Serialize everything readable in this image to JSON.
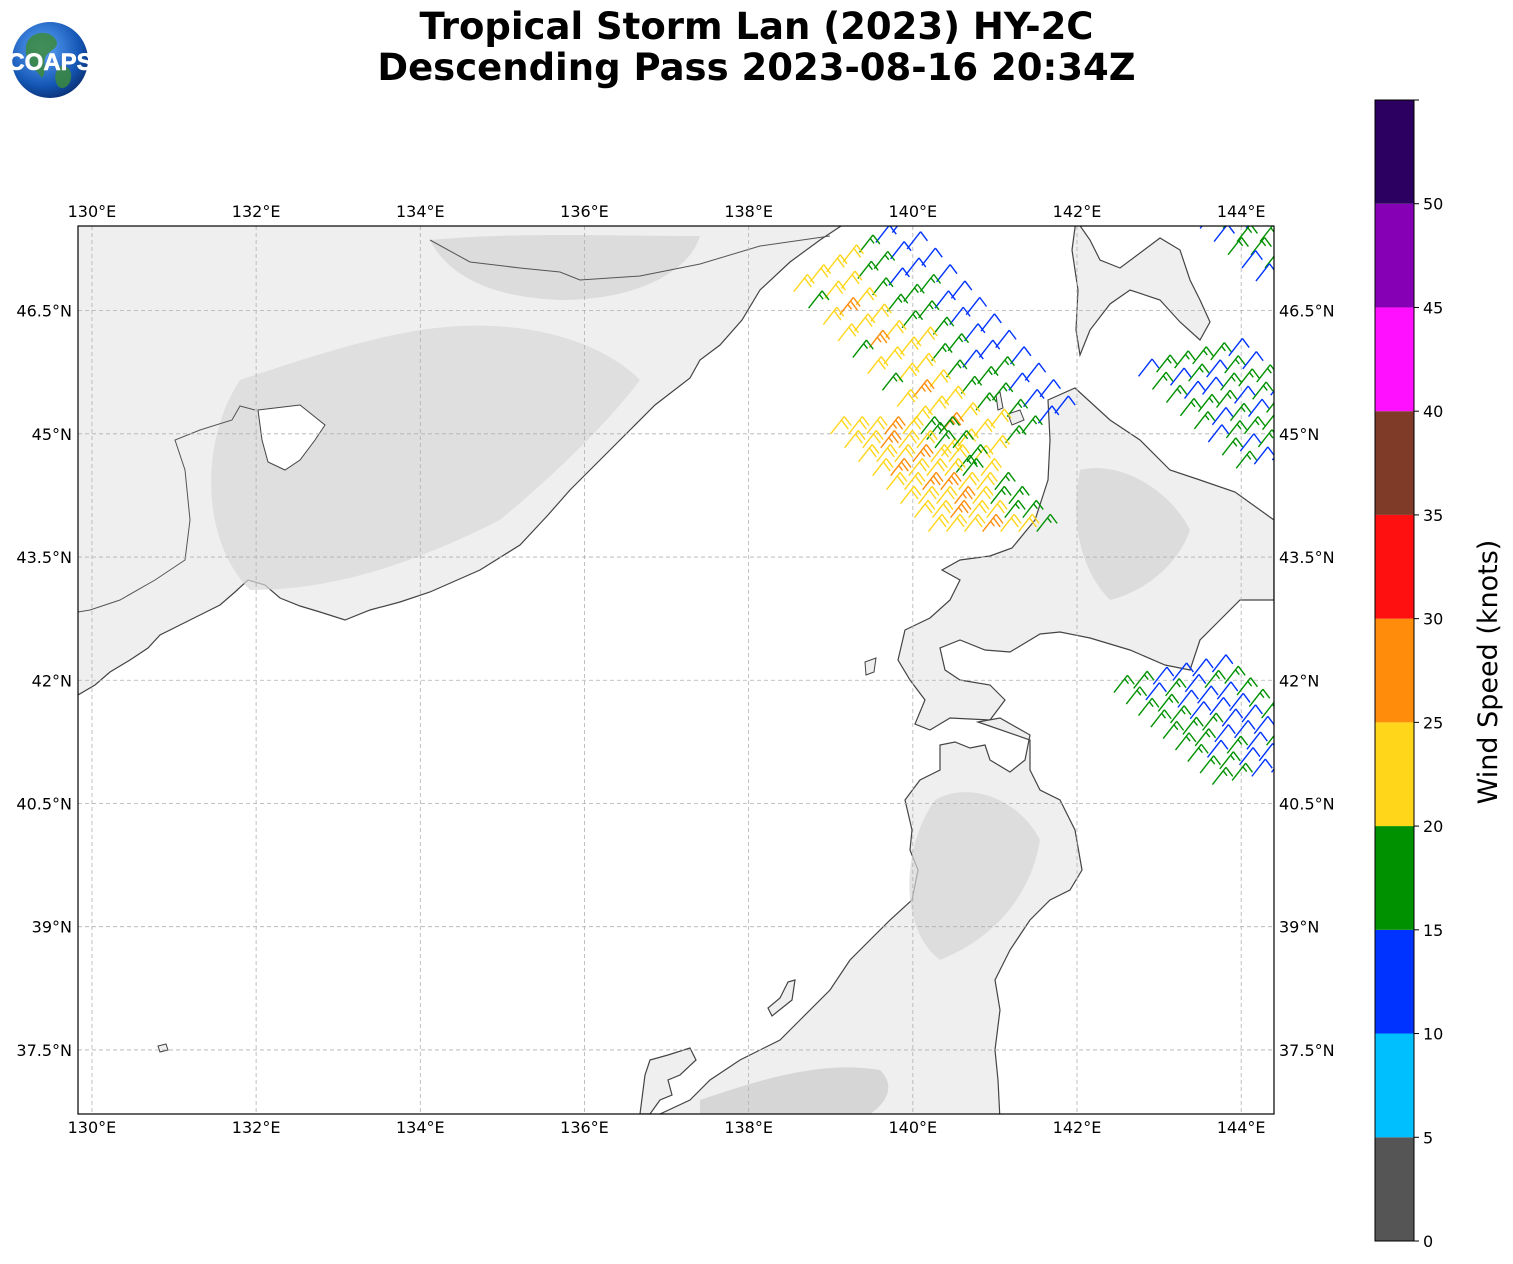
{
  "header": {
    "title_line1": "Tropical Storm Lan (2023) HY-2C",
    "title_line2": "Descending Pass 2023-08-16 20:34Z"
  },
  "logo": {
    "text": "COAPS",
    "icon": "globe-icon"
  },
  "map": {
    "lon_range": [
      129.83,
      144.4
    ],
    "lat_range": [
      36.72,
      47.53
    ],
    "lon_ticks": [
      {
        "value": 130,
        "label": "130°E"
      },
      {
        "value": 132,
        "label": "132°E"
      },
      {
        "value": 134,
        "label": "134°E"
      },
      {
        "value": 136,
        "label": "136°E"
      },
      {
        "value": 138,
        "label": "138°E"
      },
      {
        "value": 140,
        "label": "140°E"
      },
      {
        "value": 142,
        "label": "142°E"
      },
      {
        "value": 144,
        "label": "144°E"
      }
    ],
    "lat_ticks": [
      {
        "value": 46.5,
        "label": "46.5°N"
      },
      {
        "value": 45.0,
        "label": "45°N"
      },
      {
        "value": 43.5,
        "label": "43.5°N"
      },
      {
        "value": 42.0,
        "label": "42°N"
      },
      {
        "value": 40.5,
        "label": "40.5°N"
      },
      {
        "value": 39.0,
        "label": "39°N"
      },
      {
        "value": 37.5,
        "label": "37.5°N"
      }
    ],
    "gridlines": true,
    "land_color": "#f2f2f2",
    "coast_color": "#444444",
    "grid_color": "#b0b0b0"
  },
  "colorbar": {
    "label": "Wind Speed (knots)",
    "min": 0,
    "max": 55,
    "bins": [
      {
        "from": 0,
        "to": 5,
        "color": "#555555"
      },
      {
        "from": 5,
        "to": 10,
        "color": "#00bfff"
      },
      {
        "from": 10,
        "to": 15,
        "color": "#0033ff"
      },
      {
        "from": 15,
        "to": 20,
        "color": "#009100"
      },
      {
        "from": 20,
        "to": 25,
        "color": "#ffd61a"
      },
      {
        "from": 25,
        "to": 30,
        "color": "#ff8c0a"
      },
      {
        "from": 30,
        "to": 35,
        "color": "#ff1010"
      },
      {
        "from": 35,
        "to": 40,
        "color": "#803a28"
      },
      {
        "from": 40,
        "to": 45,
        "color": "#ff10ff"
      },
      {
        "from": 45,
        "to": 50,
        "color": "#8600b5"
      },
      {
        "from": 50,
        "to": 55,
        "color": "#2c0060"
      }
    ],
    "ticks": [
      "0",
      "5",
      "10",
      "15",
      "20",
      "25",
      "30",
      "35",
      "40",
      "45",
      "50"
    ]
  },
  "wind_swaths": [
    {
      "name": "north-west-swath",
      "lon_start": 139.75,
      "lat_start": 47.45,
      "lon_step_row": 0.18,
      "lat_step_row": -0.2,
      "lon_step_col": -0.2,
      "lat_step_col": -0.12,
      "rows": 12,
      "cols": 7,
      "speed_profile": [
        12,
        13,
        16,
        18,
        22,
        24,
        20
      ]
    },
    {
      "name": "central-swath",
      "lon_start": 139.0,
      "lat_start": 45.0,
      "lon_step_row": 0.17,
      "lat_step_row": -0.17,
      "lon_step_col": 0.22,
      "lat_step_col": 0.0,
      "rows": 8,
      "cols": 7,
      "speed_profile": [
        22,
        23,
        24,
        25,
        22,
        19,
        18
      ]
    },
    {
      "name": "east-upper-swath",
      "lon_start": 142.75,
      "lat_start": 45.7,
      "lon_step_row": 0.17,
      "lat_step_row": -0.16,
      "lon_step_col": 0.22,
      "lat_step_col": 0.05,
      "rows": 8,
      "cols": 6,
      "speed_profile": [
        16,
        14,
        16,
        14,
        17,
        14
      ]
    },
    {
      "name": "east-lower-swath",
      "lon_start": 142.45,
      "lat_start": 41.85,
      "lon_step_row": 0.15,
      "lat_step_row": -0.14,
      "lon_step_col": 0.24,
      "lat_step_col": 0.05,
      "rows": 9,
      "cols": 6,
      "speed_profile": [
        17,
        16,
        14,
        12,
        13,
        16
      ]
    },
    {
      "name": "north-east-swath",
      "lon_start": 143.5,
      "lat_start": 47.5,
      "lon_step_row": 0.17,
      "lat_step_row": -0.16,
      "lon_step_col": 0.28,
      "lat_step_col": 0.0,
      "rows": 5,
      "cols": 3,
      "speed_profile": [
        13,
        17,
        14
      ]
    }
  ]
}
